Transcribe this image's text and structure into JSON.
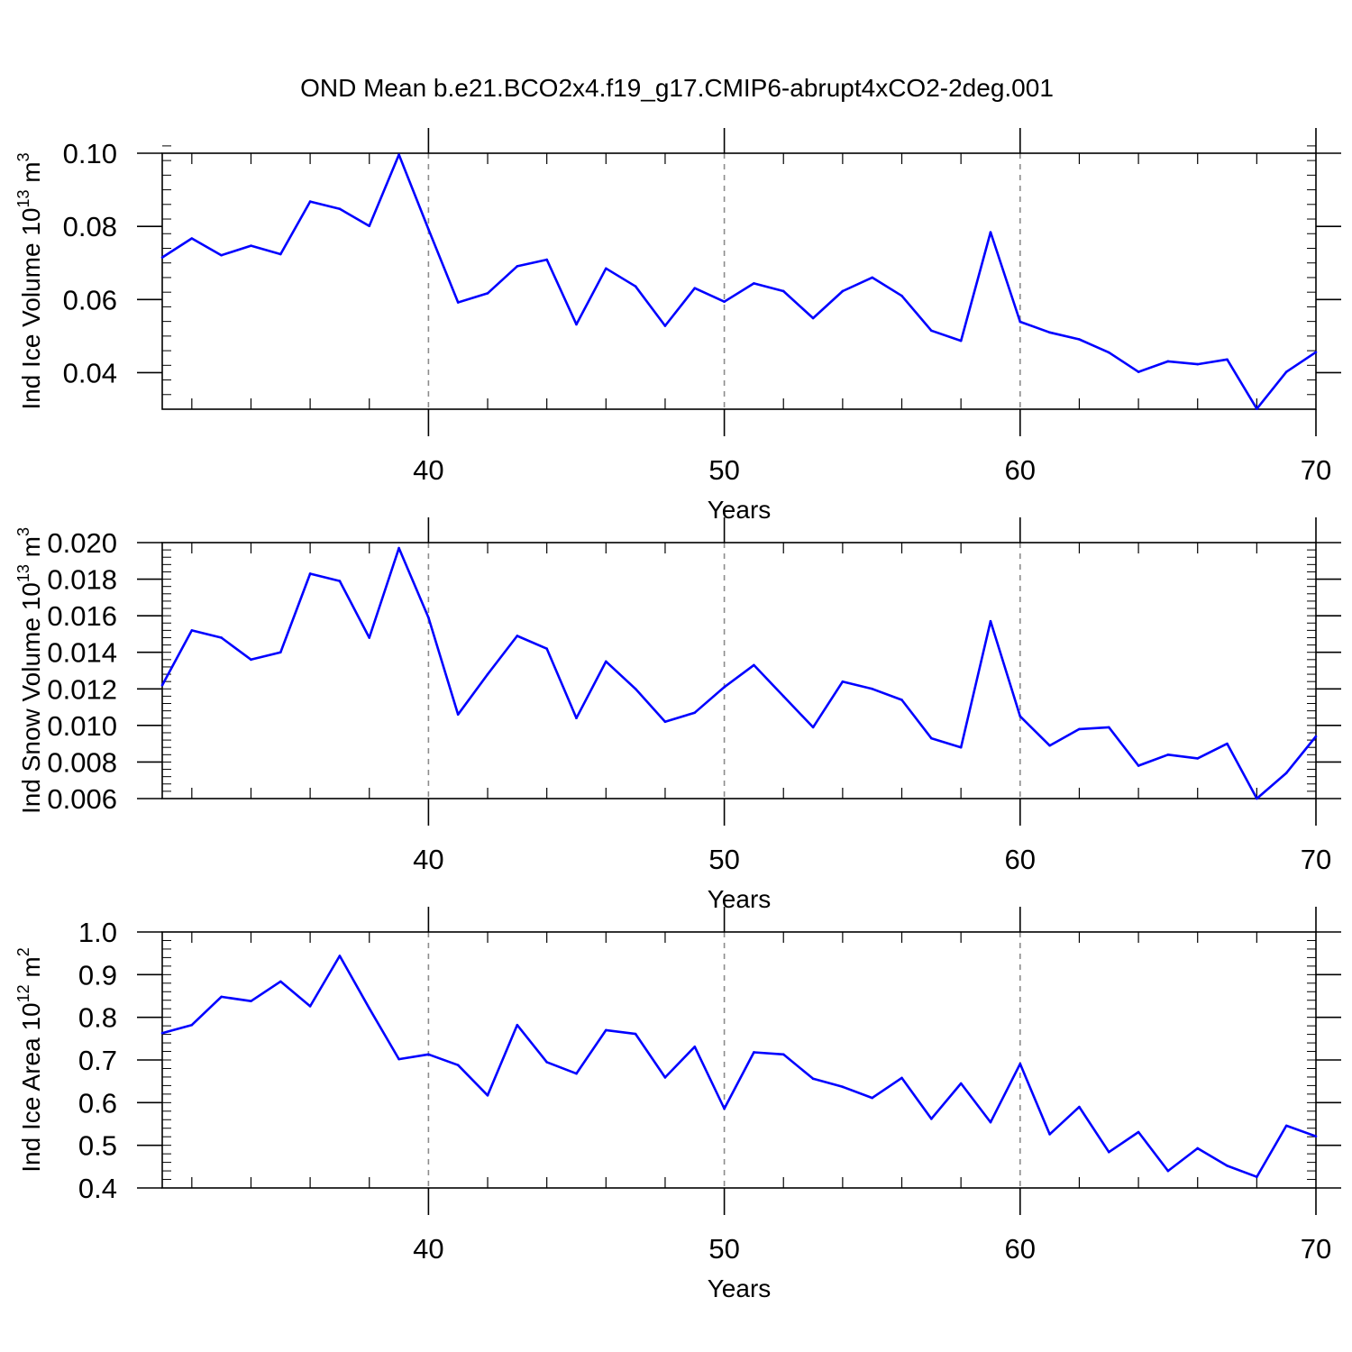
{
  "figure": {
    "title": "OND Mean b.e21.BCO2x4.f19_g17.CMIP6-abrupt4xCO2-2deg.001",
    "line_color": "#0000ff",
    "grid_color": "#8c8c8c"
  },
  "chart_data": [
    {
      "type": "line",
      "ylabel_main": "Ind Ice Volume 10",
      "ylabel_exp": "13",
      "ylabel_unit": " m",
      "ylabel_unit_exp": "3",
      "xlabel": "Years",
      "xlim": [
        31,
        70
      ],
      "ylim": [
        0.03,
        0.1
      ],
      "x_ticks": [
        40,
        50,
        60,
        70
      ],
      "x_tick_labels": [
        "40",
        "50",
        "60",
        "70"
      ],
      "y_ticks": [
        0.04,
        0.06,
        0.08,
        0.1
      ],
      "y_tick_labels": [
        "0.04",
        "0.06",
        "0.08",
        "0.10"
      ],
      "y_minor_step": 0.004,
      "grid": "dashed vertical at major x ticks",
      "x": [
        31,
        32,
        33,
        34,
        35,
        36,
        37,
        38,
        39,
        40,
        41,
        42,
        43,
        44,
        45,
        46,
        47,
        48,
        49,
        50,
        51,
        52,
        53,
        54,
        55,
        56,
        57,
        58,
        59,
        60,
        61,
        62,
        63,
        64,
        65,
        66,
        67,
        68,
        69,
        70
      ],
      "values": [
        0.0715,
        0.0767,
        0.0721,
        0.0747,
        0.0724,
        0.0868,
        0.0848,
        0.0801,
        0.0996,
        0.0792,
        0.0592,
        0.0617,
        0.0691,
        0.0709,
        0.0532,
        0.0685,
        0.0636,
        0.0528,
        0.0631,
        0.0594,
        0.0644,
        0.0623,
        0.0549,
        0.0623,
        0.066,
        0.061,
        0.0515,
        0.0487,
        0.0784,
        0.0539,
        0.051,
        0.0491,
        0.0455,
        0.0402,
        0.0431,
        0.0423,
        0.0436,
        0.0301,
        0.0402,
        0.0456
      ]
    },
    {
      "type": "line",
      "ylabel_main": "Ind Snow Volume 10",
      "ylabel_exp": "13",
      "ylabel_unit": " m",
      "ylabel_unit_exp": "3",
      "xlabel": "Years",
      "xlim": [
        31,
        70
      ],
      "ylim": [
        0.006,
        0.02
      ],
      "x_ticks": [
        40,
        50,
        60,
        70
      ],
      "x_tick_labels": [
        "40",
        "50",
        "60",
        "70"
      ],
      "y_ticks": [
        0.006,
        0.008,
        0.01,
        0.012,
        0.014,
        0.016,
        0.018,
        0.02
      ],
      "y_tick_labels": [
        "0.006",
        "0.008",
        "0.010",
        "0.012",
        "0.014",
        "0.016",
        "0.018",
        "0.020"
      ],
      "y_minor_step": 0.0004,
      "grid": "dashed vertical at major x ticks",
      "x": [
        31,
        32,
        33,
        34,
        35,
        36,
        37,
        38,
        39,
        40,
        41,
        42,
        43,
        44,
        45,
        46,
        47,
        48,
        49,
        50,
        51,
        52,
        53,
        54,
        55,
        56,
        57,
        58,
        59,
        60,
        61,
        62,
        63,
        64,
        65,
        66,
        67,
        68,
        69,
        70
      ],
      "values": [
        0.0122,
        0.0152,
        0.0148,
        0.0136,
        0.014,
        0.0183,
        0.0179,
        0.0148,
        0.0197,
        0.0159,
        0.0106,
        0.0128,
        0.0149,
        0.0142,
        0.0104,
        0.0135,
        0.012,
        0.0102,
        0.0107,
        0.0121,
        0.0133,
        0.0116,
        0.0099,
        0.0124,
        0.012,
        0.0114,
        0.0093,
        0.0088,
        0.0157,
        0.0105,
        0.0089,
        0.0098,
        0.0099,
        0.0078,
        0.0084,
        0.0082,
        0.009,
        0.006,
        0.0074,
        0.0094
      ]
    },
    {
      "type": "line",
      "ylabel_main": "Ind Ice Area 10",
      "ylabel_exp": "12",
      "ylabel_unit": " m",
      "ylabel_unit_exp": "2",
      "xlabel": "Years",
      "xlim": [
        31,
        70
      ],
      "ylim": [
        0.4,
        1.0
      ],
      "x_ticks": [
        40,
        50,
        60,
        70
      ],
      "x_tick_labels": [
        "40",
        "50",
        "60",
        "70"
      ],
      "y_ticks": [
        0.4,
        0.5,
        0.6,
        0.7,
        0.8,
        0.9,
        1.0
      ],
      "y_tick_labels": [
        "0.4",
        "0.5",
        "0.6",
        "0.7",
        "0.8",
        "0.9",
        "1.0"
      ],
      "y_minor_step": 0.02,
      "grid": "dashed vertical at major x ticks",
      "x": [
        31,
        32,
        33,
        34,
        35,
        36,
        37,
        38,
        39,
        40,
        41,
        42,
        43,
        44,
        45,
        46,
        47,
        48,
        49,
        50,
        51,
        52,
        53,
        54,
        55,
        56,
        57,
        58,
        59,
        60,
        61,
        62,
        63,
        64,
        65,
        66,
        67,
        68,
        69,
        70
      ],
      "values": [
        0.763,
        0.782,
        0.848,
        0.838,
        0.884,
        0.826,
        0.944,
        0.821,
        0.702,
        0.713,
        0.688,
        0.617,
        0.782,
        0.695,
        0.668,
        0.77,
        0.761,
        0.659,
        0.731,
        0.586,
        0.718,
        0.713,
        0.656,
        0.637,
        0.611,
        0.658,
        0.562,
        0.645,
        0.554,
        0.691,
        0.526,
        0.59,
        0.484,
        0.531,
        0.44,
        0.493,
        0.452,
        0.426,
        0.546,
        0.521
      ]
    }
  ]
}
